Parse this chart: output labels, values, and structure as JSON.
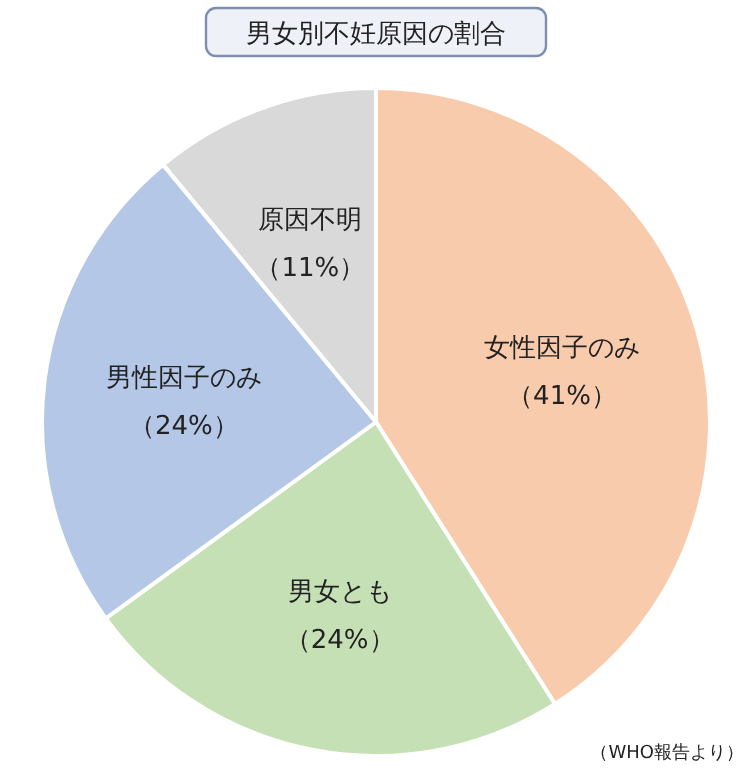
{
  "chart_data": {
    "type": "pie",
    "title": "男女別不妊原因の割合",
    "categories": [
      "女性因子のみ",
      "男女とも",
      "男性因子のみ",
      "原因不明"
    ],
    "values": [
      41,
      24,
      24,
      11
    ],
    "colors": [
      "#f8cbad",
      "#c5e0b4",
      "#b4c7e7",
      "#d9d9d9"
    ],
    "value_labels": [
      "（41%）",
      "（24%）",
      "（24%）",
      "（11%）"
    ],
    "annotations": [
      "（WHO報告より）"
    ]
  }
}
